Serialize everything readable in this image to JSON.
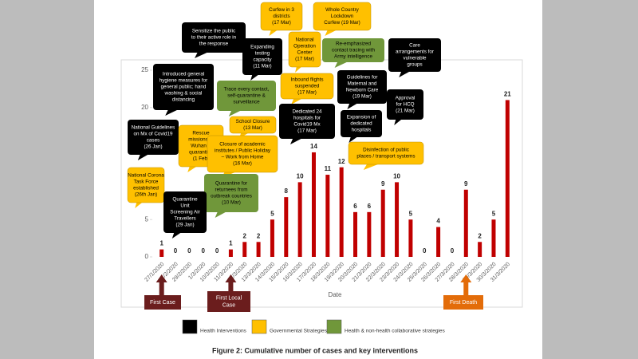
{
  "chart_data": {
    "type": "bar",
    "x_label": "Date",
    "caption": "Figure 2: Cumulative number of cases and key interventions",
    "categories": [
      "27/1/2020",
      "1/2/2020",
      "29/2/2020",
      "1/3/2020",
      "10/3/2020",
      "11/3/2020",
      "12/3/2020",
      "13/3/2020",
      "14/3/2020",
      "15/3/2020",
      "16/3/2020",
      "17/3/2020",
      "18/3/2020",
      "19/3/2020",
      "20/3/2020",
      "21/3/2020",
      "22/3/2020",
      "23/3/2020",
      "24/3/2020",
      "25/3/2020",
      "26/3/2020",
      "27/3/2020",
      "28/3/2020",
      "29/3/2020",
      "30/3/2020",
      "31/3/2020"
    ],
    "values": [
      1,
      0,
      0,
      0,
      0,
      1,
      2,
      2,
      5,
      8,
      10,
      14,
      11,
      12,
      6,
      6,
      9,
      10,
      5,
      0,
      4,
      0,
      9,
      2,
      5,
      21
    ],
    "color": "#c00000",
    "ylim": [
      0,
      25
    ],
    "yticks": [
      0,
      5,
      10,
      15,
      20,
      25
    ],
    "legend": [
      {
        "name": "Health Interventions",
        "color": "#000000"
      },
      {
        "name": "Governmental Strategies",
        "color": "#ffc000"
      },
      {
        "name": "Health & non-health collaborative strategies",
        "color": "#70973a"
      }
    ],
    "events": [
      {
        "label": "First Case",
        "color": "#6b1d1d"
      },
      {
        "label": [
          "First Local",
          "Case"
        ],
        "color": "#6b1d1d"
      },
      {
        "label": "First Death",
        "color": "#e36c09"
      }
    ],
    "annotations": [
      {
        "group": 0,
        "lines": [
          "Sensitize the public",
          "to their active role in",
          "the response"
        ]
      },
      {
        "group": 1,
        "lines": [
          "Curfew in 3",
          "districts",
          "(17 Mar)"
        ]
      },
      {
        "group": 1,
        "lines": [
          "Whole Country",
          "Lockdown",
          "Curfew (19 Mar)"
        ]
      },
      {
        "group": 0,
        "lines": [
          "Expanding",
          "testing",
          "capacity",
          "(11 Mar)"
        ]
      },
      {
        "group": 1,
        "lines": [
          "National",
          "Operation",
          "Center",
          "(17 Mar)"
        ]
      },
      {
        "group": 2,
        "lines": [
          "Re-emphasized",
          "contact tracing with",
          "Army intelligence"
        ]
      },
      {
        "group": 0,
        "lines": [
          "Care",
          "arrangements for",
          "vulnerable",
          "groups"
        ]
      },
      {
        "group": 0,
        "lines": [
          "Introduced general",
          "hygiene measures for",
          "general public; hand",
          "washing & social",
          "distancing"
        ]
      },
      {
        "group": 2,
        "lines": [
          "Trace every contact,",
          "self-quarantine &",
          "surveillance"
        ]
      },
      {
        "group": 1,
        "lines": [
          "Inbound flights",
          "suspended",
          "(17 Mar)"
        ]
      },
      {
        "group": 0,
        "lines": [
          "Guidelines for",
          "Maternal and",
          "Newborn Care",
          "(19 Mar)"
        ]
      },
      {
        "group": 0,
        "lines": [
          "Approval",
          "for HCQ",
          "(21 Mar)"
        ]
      },
      {
        "group": 0,
        "lines": [
          "National Guidelines",
          "on Mx of Covid19",
          "cases",
          "(26 Jan)"
        ]
      },
      {
        "group": 1,
        "lines": [
          "School Closure",
          "(13 Mar)"
        ]
      },
      {
        "group": 0,
        "lines": [
          "Dedicated 24",
          "hospitals for",
          "Covid19 Mx",
          "(17 Mar)"
        ]
      },
      {
        "group": 0,
        "lines": [
          "Expansion of",
          "dedicated",
          "hospitals"
        ]
      },
      {
        "group": 1,
        "lines": [
          "Rescue",
          "missions to",
          "Wuhan &",
          "quarantine",
          "(1 Feb)"
        ]
      },
      {
        "group": 1,
        "lines": [
          "Closure of academic",
          "institutes / Public Holiday",
          "– Work from Home",
          "(16 Mar)"
        ]
      },
      {
        "group": 1,
        "lines": [
          "Disinfection of public",
          "places / transport systems"
        ]
      },
      {
        "group": 1,
        "lines": [
          "National Corona",
          "Task Force",
          "established",
          "(26th Jan)"
        ]
      },
      {
        "group": 2,
        "lines": [
          "Quarantine for",
          "returnees from",
          "outbreak countries",
          "(10 Mar)"
        ]
      },
      {
        "group": 0,
        "lines": [
          "Quarantine",
          "Unit",
          "Screening Air",
          "Travellers",
          "(29 Jan)"
        ]
      }
    ]
  }
}
